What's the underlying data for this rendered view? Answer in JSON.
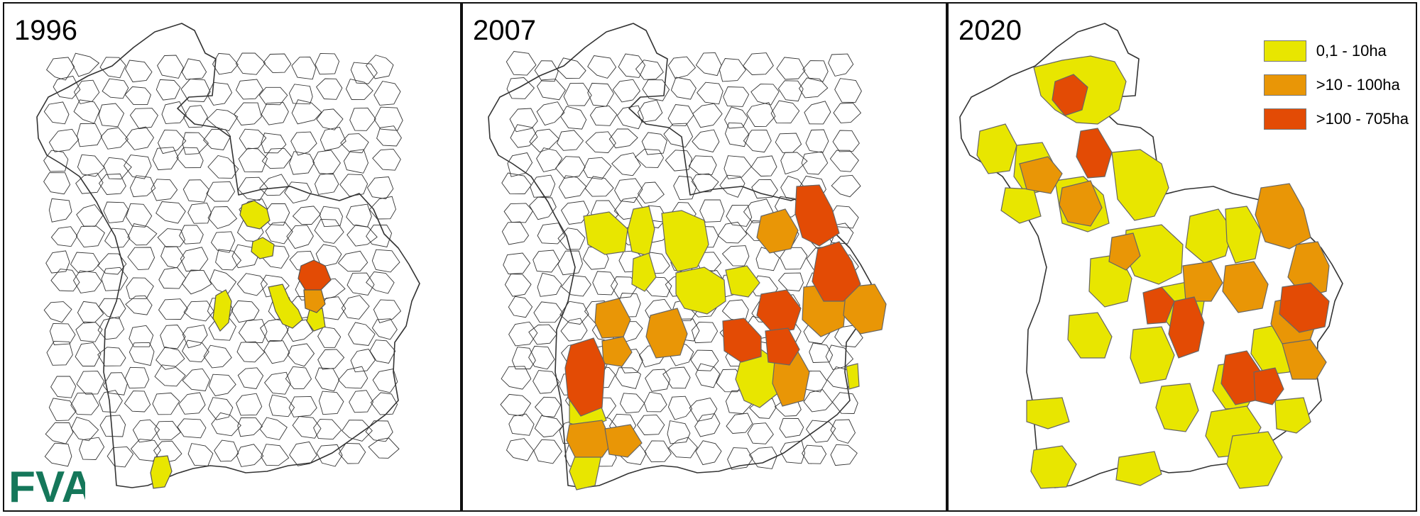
{
  "panels": [
    {
      "year": "1996"
    },
    {
      "year": "2007"
    },
    {
      "year": "2020"
    }
  ],
  "legend": [
    {
      "label": "0,1 - 10ha",
      "color": "#e8e600"
    },
    {
      "label": ">10 - 100ha",
      "color": "#e99606"
    },
    {
      "label": ">100 - 705ha",
      "color": "#e34b05"
    }
  ],
  "logo": {
    "text": "FVA",
    "color": "#15775a"
  },
  "colors": {
    "outline": "#333333",
    "border": "#111111",
    "unshaded": "#ffffff"
  },
  "icons": {
    "logo": "fva-logo-icon"
  }
}
